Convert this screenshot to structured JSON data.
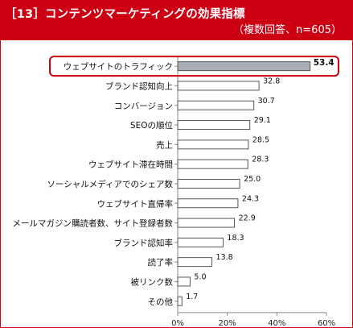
{
  "header": {
    "title": "［13］コンテンツマーケティングの効果指標",
    "subtitle": "（複数回答、n=605）"
  },
  "colors": {
    "header_bg": "#cc0012",
    "bar_fill": "#ffffff",
    "bar_stroke": "#555555",
    "highlight_fill": "#a9adb8",
    "highlight_outline": "#cc0012"
  },
  "chart_data": {
    "type": "bar",
    "orientation": "horizontal",
    "categories": [
      "ウェブサイトのトラフィック",
      "ブランド認知向上",
      "コンバージョン",
      "SEOの順位",
      "売上",
      "ウェブサイト滞在時間",
      "ソーシャルメディアでのシェア数",
      "ウェブサイト直帰率",
      "メールマガジン購読者数、サイト登録者数",
      "ブランド認知率",
      "読了率",
      "被リンク数",
      "その他"
    ],
    "values": [
      53.4,
      32.8,
      30.7,
      29.1,
      28.5,
      28.3,
      25.0,
      24.3,
      22.9,
      18.3,
      13.8,
      5.0,
      1.7
    ],
    "value_labels": [
      "53.4",
      "32.8",
      "30.7",
      "29.1",
      "28.5",
      "28.3",
      "25.0",
      "24.3",
      "22.9",
      "18.3",
      "13.8",
      "5.0",
      "1.7"
    ],
    "highlight_index": 0,
    "xlim": [
      0,
      60
    ],
    "xticks": [
      0,
      20,
      40,
      60
    ],
    "xtick_labels": [
      "0%",
      "20%",
      "40%",
      "60%"
    ],
    "grid": false,
    "legend": "none"
  }
}
